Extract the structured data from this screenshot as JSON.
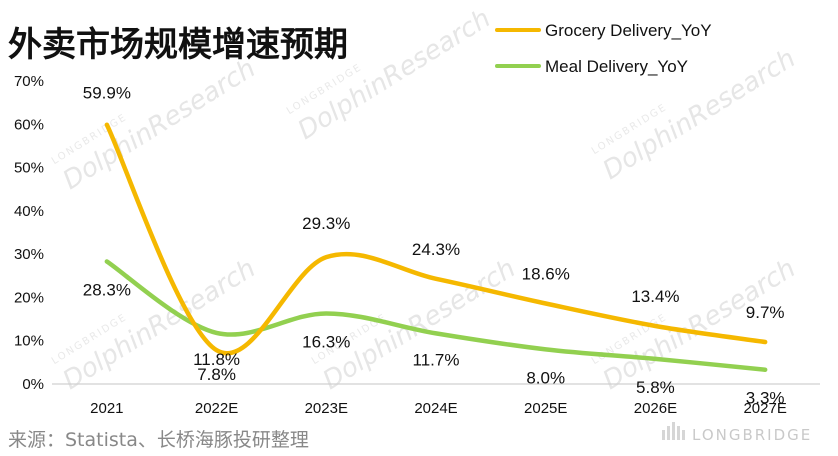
{
  "chart_data": {
    "type": "line",
    "title": "外卖市场规模增速预期",
    "categories": [
      "2021",
      "2022E",
      "2023E",
      "2024E",
      "2025E",
      "2026E",
      "2027E"
    ],
    "y_ticks": [
      "0%",
      "10%",
      "20%",
      "30%",
      "40%",
      "50%",
      "60%",
      "70%"
    ],
    "ylim": [
      0,
      70
    ],
    "grid": false,
    "legend_position": "top-right",
    "series": [
      {
        "name": "Grocery Delivery_YoY",
        "color": "#F5B800",
        "values": [
          59.9,
          7.8,
          29.3,
          24.3,
          18.6,
          13.4,
          9.7
        ],
        "labels": [
          "59.9%",
          "7.8%",
          "29.3%",
          "24.3%",
          "18.6%",
          "13.4%",
          "9.7%"
        ]
      },
      {
        "name": "Meal Delivery_YoY",
        "color": "#92D050",
        "values": [
          28.3,
          11.8,
          16.3,
          11.7,
          8.0,
          5.8,
          3.3
        ],
        "labels": [
          "28.3%",
          "11.8%",
          "16.3%",
          "11.7%",
          "8.0%",
          "5.8%",
          "3.3%"
        ]
      }
    ],
    "source": "来源：Statista、长桥海豚投研整理"
  },
  "watermark": {
    "main": "DolphinResearch",
    "small": "LONGBRIDGE",
    "brand": "LONGBRIDGE"
  }
}
